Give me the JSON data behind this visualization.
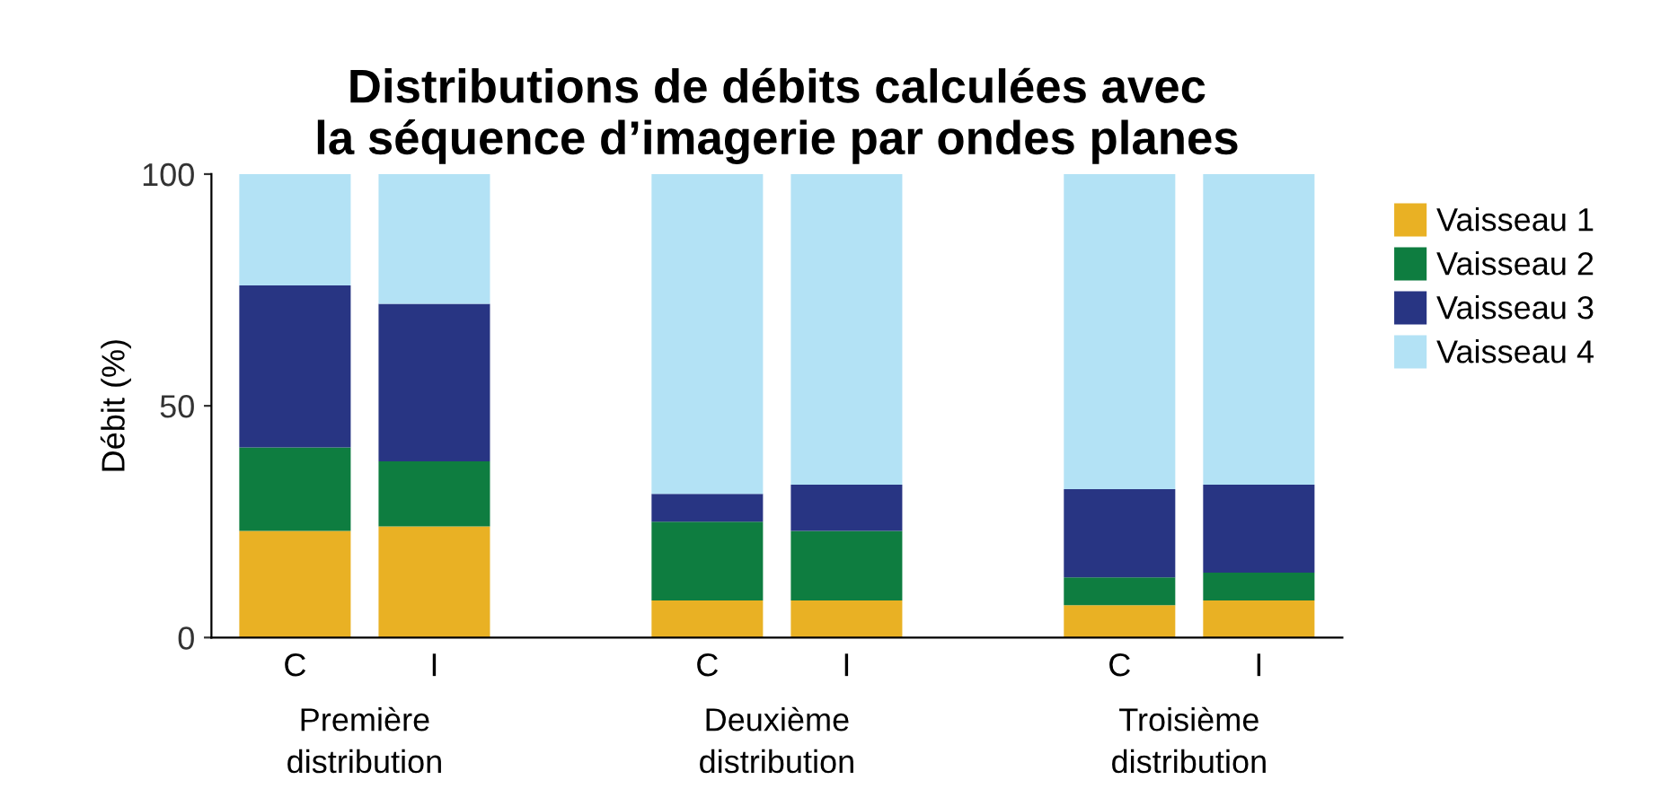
{
  "chart_data": {
    "type": "bar",
    "title": "Distributions de débits calculées avec\nla séquence d’imagerie par ondes planes",
    "ylabel": "Débit (%)",
    "categories": [
      "C",
      "I",
      "C",
      "I",
      "C",
      "I"
    ],
    "series": [
      {
        "name": "Vaisseau 1",
        "color": "#e9b124",
        "values": [
          23,
          24,
          8,
          8,
          7,
          8
        ]
      },
      {
        "name": "Vaisseau 2",
        "color": "#0e7d40",
        "values": [
          18,
          14,
          17,
          15,
          6,
          6
        ]
      },
      {
        "name": "Vaisseau 3",
        "color": "#283583",
        "values": [
          35,
          34,
          6,
          10,
          19,
          19
        ]
      },
      {
        "name": "Vaisseau 4",
        "color": "#b3e2f5",
        "values": [
          24,
          28,
          69,
          67,
          68,
          67
        ]
      }
    ],
    "stacked": true,
    "ylim": [
      0,
      100
    ],
    "yticks": [
      0,
      50,
      100
    ],
    "grid": false,
    "legend": "right",
    "annotations": [
      "Première\ndistribution",
      "Deuxième\ndistribution",
      "Troisième\ndistribution"
    ]
  }
}
